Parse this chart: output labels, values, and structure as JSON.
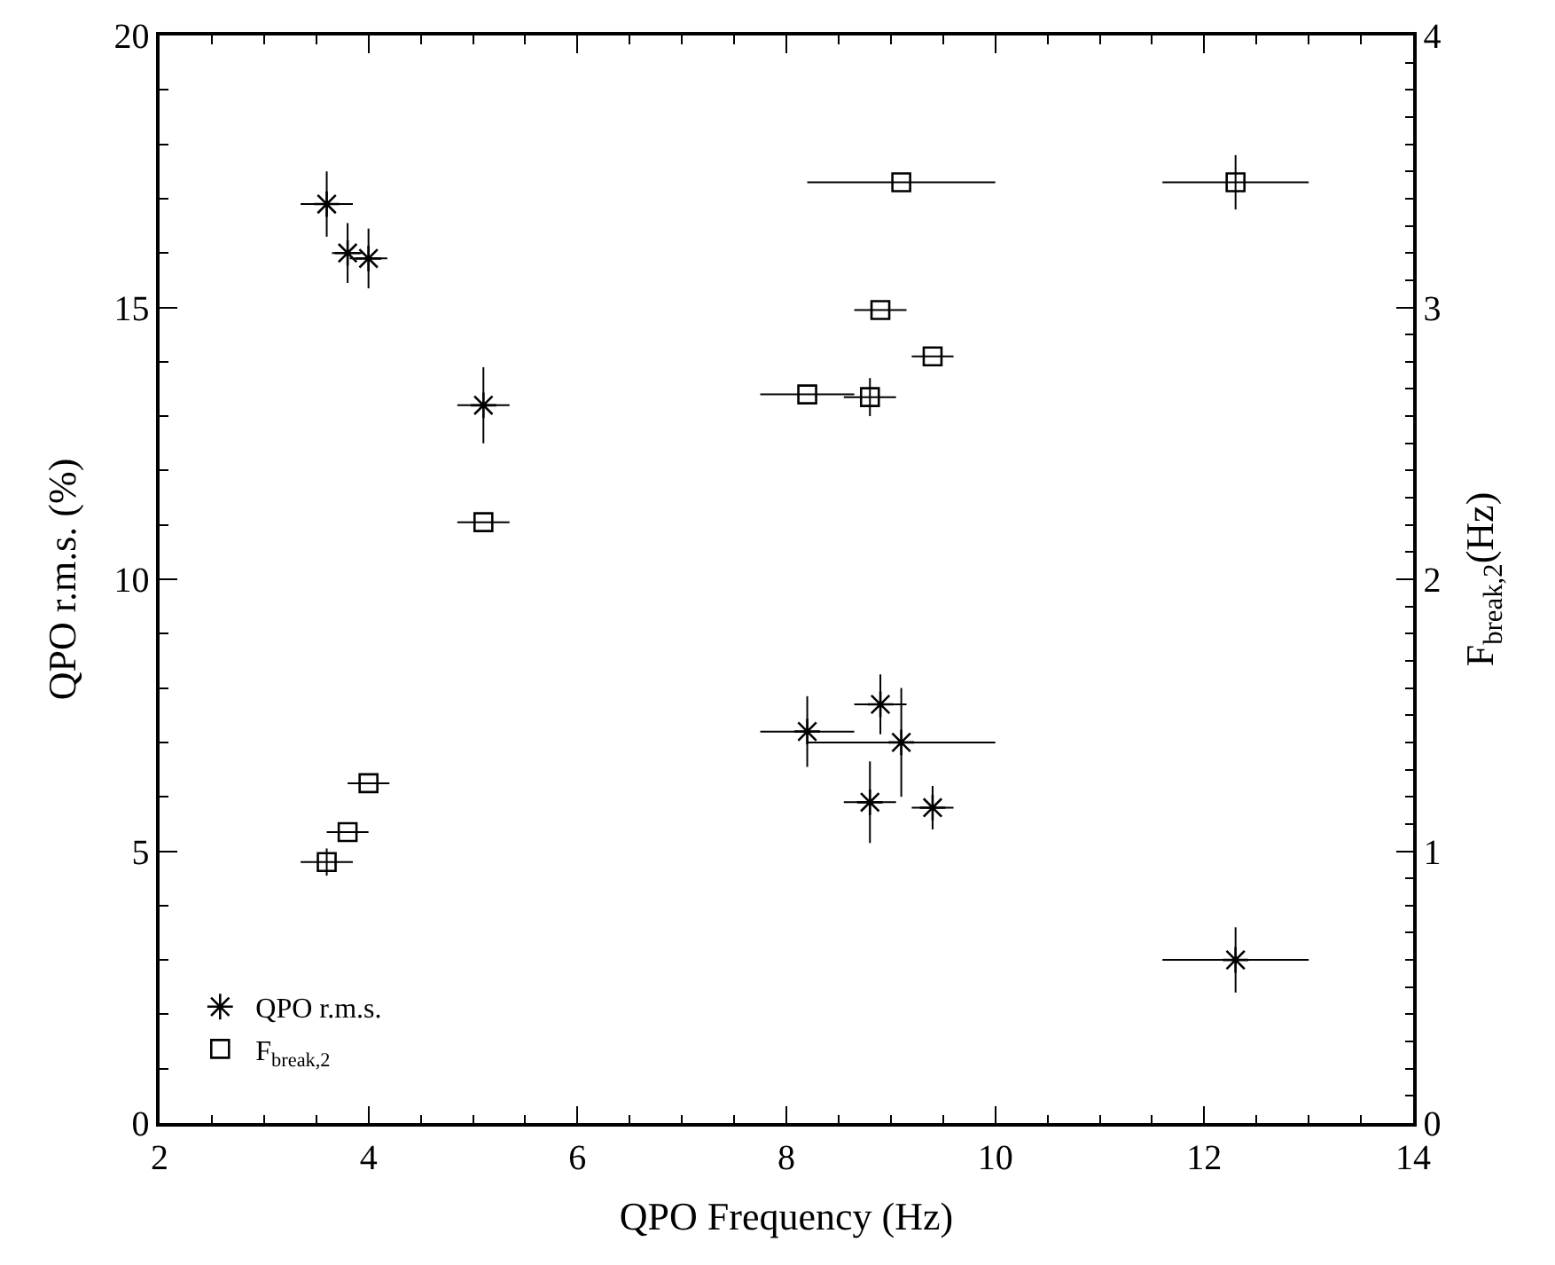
{
  "chart_data": {
    "type": "scatter",
    "xlabel": "QPO Frequency (Hz)",
    "ylabel": "QPO r.m.s. (%)",
    "y2label": "F$_{break,2}$(Hz)",
    "xlim": [
      2,
      14
    ],
    "xticks": [
      2,
      4,
      6,
      8,
      10,
      12,
      14
    ],
    "ylim": [
      0,
      20
    ],
    "yticks": [
      0,
      5,
      10,
      15,
      20
    ],
    "y2lim": [
      0,
      4
    ],
    "y2ticks": [
      0,
      1,
      2,
      3,
      4
    ],
    "legend": "bottom left",
    "series": [
      {
        "name": "QPO r.m.s.",
        "color": "#000000",
        "marker": "cross",
        "x": [
          3.6,
          3.8,
          4.0,
          5.1,
          8.2,
          8.9,
          9.1,
          8.8,
          9.4,
          12.3
        ],
        "values": [
          16.9,
          16.0,
          15.9,
          13.2,
          7.2,
          7.7,
          7.0,
          5.9,
          5.8,
          3.0
        ],
        "errors": [
          0.6,
          0.55,
          0.55,
          0.7,
          0.65,
          0.55,
          1.0,
          0.75,
          0.4,
          0.6
        ],
        "xerrors": [
          0.25,
          0.15,
          0.18,
          0.25,
          0.45,
          0.25,
          0.9,
          0.25,
          0.2,
          0.7
        ]
      },
      {
        "name": "F$_{break,2}$",
        "color": "#000000",
        "marker": "square",
        "axis": "y2",
        "x": [
          9.1,
          12.3,
          8.9,
          9.4,
          8.2,
          8.8,
          5.1,
          4.0,
          3.8,
          3.6
        ],
        "values": [
          3.46,
          3.46,
          2.99,
          2.82,
          2.68,
          2.67,
          2.21,
          1.25,
          1.07,
          0.96
        ],
        "errors": [
          null,
          0.1,
          null,
          null,
          null,
          0.07,
          null,
          null,
          null,
          0.05
        ],
        "xerrors": [
          0.9,
          0.7,
          0.25,
          0.2,
          0.45,
          0.25,
          0.25,
          0.2,
          0.2,
          0.25
        ]
      }
    ]
  }
}
